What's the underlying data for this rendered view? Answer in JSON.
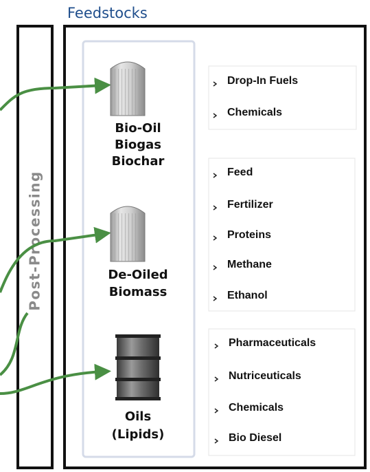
{
  "title": "Feedstocks",
  "side_label": "Post-Processing",
  "groups": [
    {
      "label_lines": [
        "Bio-Oil",
        "Biogas",
        "Biochar"
      ],
      "products": [
        "Drop-In Fuels",
        "Chemicals"
      ]
    },
    {
      "label_lines": [
        "De-Oiled",
        "Biomass"
      ],
      "products": [
        "Feed",
        "Fertilizer",
        "Proteins",
        "Methane",
        "Ethanol"
      ]
    },
    {
      "label_lines": [
        "Oils",
        "(Lipids)"
      ],
      "products": [
        "Pharmaceuticals",
        "Nutriceuticals",
        "Chemicals",
        "Bio Diesel"
      ]
    }
  ]
}
